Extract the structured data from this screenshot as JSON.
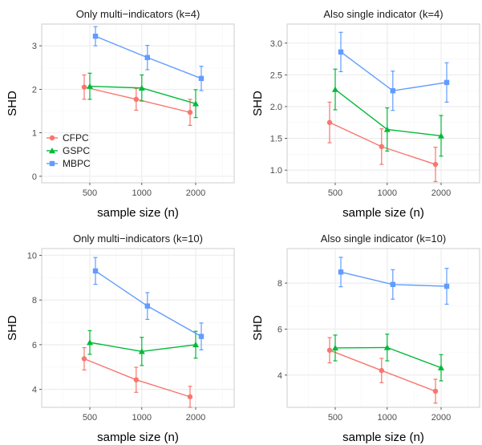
{
  "colors": {
    "CFPC": "#F8766D",
    "GSPC": "#00BA38",
    "MBPC": "#619CFF",
    "panel_bg": "#ffffff",
    "panel_border": "#cccccc",
    "grid_major": "#ebebeb",
    "grid_minor": "#f5f5f5"
  },
  "legend": {
    "position": "inside-bottom-left of top-left panel",
    "items": [
      {
        "name": "CFPC",
        "marker": "circle"
      },
      {
        "name": "GSPC",
        "marker": "triangle"
      },
      {
        "name": "MBPC",
        "marker": "square"
      }
    ]
  },
  "chart_data": [
    {
      "type": "line",
      "title": "Only multi−indicators (k=4)",
      "xlabel": "sample size (n)",
      "ylabel": "SHD",
      "x_ticks": [
        "500",
        "1000",
        "2000"
      ],
      "y_ticks": [
        "0",
        "1",
        "2",
        "3"
      ],
      "ylim": [
        -0.15,
        3.5
      ],
      "grid": true,
      "series": [
        {
          "name": "CFPC",
          "x": [
            500,
            1000,
            2000
          ],
          "y": [
            2.05,
            1.77,
            1.47
          ],
          "lower": [
            1.77,
            1.52,
            1.17
          ],
          "upper": [
            2.33,
            2.02,
            1.77
          ]
        },
        {
          "name": "GSPC",
          "x": [
            500,
            1000,
            2000
          ],
          "y": [
            2.07,
            2.03,
            1.67
          ],
          "lower": [
            1.77,
            1.73,
            1.35
          ],
          "upper": [
            2.37,
            2.33,
            1.99
          ]
        },
        {
          "name": "MBPC",
          "x": [
            500,
            1000,
            2000
          ],
          "y": [
            3.22,
            2.73,
            2.25
          ],
          "lower": [
            3.0,
            2.45,
            1.97
          ],
          "upper": [
            3.44,
            3.01,
            2.53
          ]
        }
      ]
    },
    {
      "type": "line",
      "title": "Also single indicator (k=4)",
      "xlabel": "sample size (n)",
      "ylabel": "SHD",
      "x_ticks": [
        "500",
        "1000",
        "2000"
      ],
      "y_ticks": [
        "1.0",
        "1.5",
        "2.0",
        "2.5",
        "3.0"
      ],
      "ylim": [
        0.8,
        3.3
      ],
      "grid": true,
      "series": [
        {
          "name": "CFPC",
          "x": [
            500,
            1000,
            2000
          ],
          "y": [
            1.75,
            1.37,
            1.09
          ],
          "lower": [
            1.43,
            1.09,
            0.82
          ],
          "upper": [
            2.07,
            1.65,
            1.36
          ]
        },
        {
          "name": "GSPC",
          "x": [
            500,
            1000,
            2000
          ],
          "y": [
            2.27,
            1.64,
            1.54
          ],
          "lower": [
            1.95,
            1.3,
            1.22
          ],
          "upper": [
            2.59,
            1.98,
            1.86
          ]
        },
        {
          "name": "MBPC",
          "x": [
            500,
            1000,
            2000
          ],
          "y": [
            2.86,
            2.25,
            2.38
          ],
          "lower": [
            2.55,
            1.94,
            2.07
          ],
          "upper": [
            3.17,
            2.56,
            2.69
          ]
        }
      ]
    },
    {
      "type": "line",
      "title": "Only multi−indicators (k=10)",
      "xlabel": "sample size (n)",
      "ylabel": "SHD",
      "x_ticks": [
        "500",
        "1000",
        "2000"
      ],
      "y_ticks": [
        "4",
        "6",
        "8",
        "10"
      ],
      "ylim": [
        3.2,
        10.3
      ],
      "grid": true,
      "series": [
        {
          "name": "CFPC",
          "x": [
            500,
            1000,
            2000
          ],
          "y": [
            5.37,
            4.43,
            3.67
          ],
          "lower": [
            4.87,
            3.87,
            3.2
          ],
          "upper": [
            5.87,
            4.99,
            4.14
          ]
        },
        {
          "name": "GSPC",
          "x": [
            500,
            1000,
            2000
          ],
          "y": [
            6.1,
            5.7,
            6.0
          ],
          "lower": [
            5.57,
            5.07,
            5.4
          ],
          "upper": [
            6.63,
            6.33,
            6.6
          ]
        },
        {
          "name": "MBPC",
          "x": [
            500,
            1000,
            2000
          ],
          "y": [
            9.3,
            7.73,
            6.37
          ],
          "lower": [
            8.7,
            7.13,
            5.77
          ],
          "upper": [
            9.9,
            8.33,
            6.97
          ]
        }
      ]
    },
    {
      "type": "line",
      "title": "Also single indicator (k=10)",
      "xlabel": "sample size (n)",
      "ylabel": "SHD",
      "x_ticks": [
        "500",
        "1000",
        "2000"
      ],
      "y_ticks": [
        "4",
        "6",
        "8"
      ],
      "ylim": [
        2.6,
        9.5
      ],
      "grid": true,
      "series": [
        {
          "name": "CFPC",
          "x": [
            500,
            1000,
            2000
          ],
          "y": [
            5.08,
            4.2,
            3.3
          ],
          "lower": [
            4.53,
            3.67,
            2.78
          ],
          "upper": [
            5.63,
            4.73,
            3.82
          ]
        },
        {
          "name": "GSPC",
          "x": [
            500,
            1000,
            2000
          ],
          "y": [
            5.18,
            5.2,
            4.32
          ],
          "lower": [
            4.62,
            4.62,
            3.75
          ],
          "upper": [
            5.74,
            5.78,
            4.89
          ]
        },
        {
          "name": "MBPC",
          "x": [
            500,
            1000,
            2000
          ],
          "y": [
            8.48,
            7.94,
            7.86
          ],
          "lower": [
            7.84,
            7.3,
            7.08
          ],
          "upper": [
            9.12,
            8.58,
            8.64
          ]
        }
      ]
    }
  ]
}
